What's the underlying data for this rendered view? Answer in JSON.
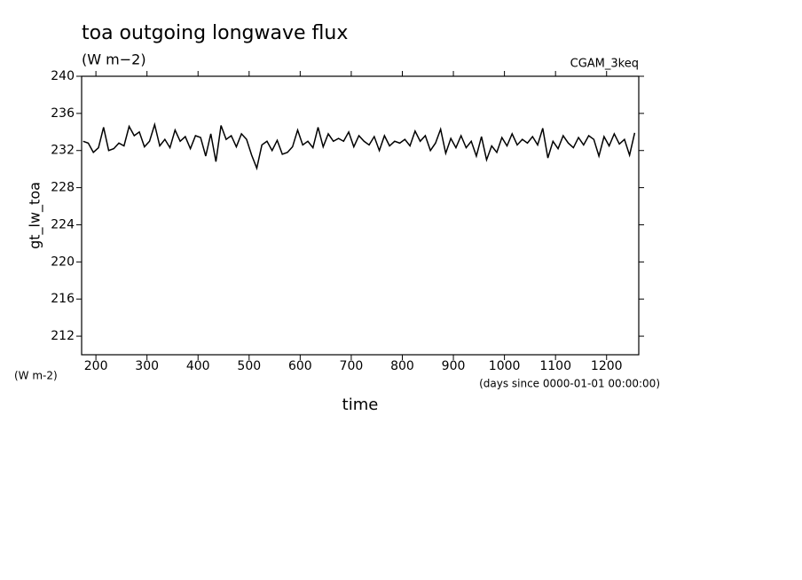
{
  "chart_data": {
    "type": "line",
    "title": "toa outgoing longwave flux",
    "subtitle": "(W m−2)",
    "dataset": "CGAM_3keq",
    "y_label": "gt_lw_toa",
    "y_units": "(W m-2)",
    "x_label": "time",
    "x_units": "(days since 0000-01-01 00:00:00)",
    "xlim": [
      172,
      1263
    ],
    "xticks": [
      200,
      300,
      400,
      500,
      600,
      700,
      800,
      900,
      1000,
      1100,
      1200
    ],
    "ylim": [
      210,
      240
    ],
    "yticks": [
      212,
      216,
      220,
      224,
      228,
      232,
      236,
      240
    ],
    "x": [
      175,
      185,
      195,
      205,
      215,
      225,
      235,
      245,
      255,
      265,
      275,
      285,
      295,
      305,
      315,
      325,
      335,
      345,
      355,
      365,
      375,
      385,
      395,
      405,
      415,
      425,
      435,
      445,
      455,
      465,
      475,
      485,
      495,
      505,
      515,
      525,
      535,
      545,
      555,
      565,
      575,
      585,
      595,
      605,
      615,
      625,
      635,
      645,
      655,
      665,
      675,
      685,
      695,
      705,
      715,
      725,
      735,
      745,
      755,
      765,
      775,
      785,
      795,
      805,
      815,
      825,
      835,
      845,
      855,
      865,
      875,
      885,
      895,
      905,
      915,
      925,
      935,
      945,
      955,
      965,
      975,
      985,
      995,
      1005,
      1015,
      1025,
      1035,
      1045,
      1055,
      1065,
      1075,
      1085,
      1095,
      1105,
      1115,
      1125,
      1135,
      1145,
      1155,
      1165,
      1175,
      1185,
      1195,
      1205,
      1215,
      1225,
      1235,
      1245,
      1255
    ],
    "series": [
      {
        "color": "#000000",
        "values": [
          233.0,
          232.8,
          231.8,
          232.3,
          234.5,
          232.0,
          232.2,
          232.8,
          232.5,
          234.6,
          233.6,
          234.0,
          232.4,
          233.0,
          234.8,
          232.5,
          233.2,
          232.3,
          234.2,
          233.0,
          233.5,
          232.2,
          233.6,
          233.4,
          231.4,
          233.8,
          230.8,
          234.7,
          233.2,
          233.6,
          232.4,
          233.8,
          233.2,
          231.5,
          230.1,
          232.6,
          233.0,
          232.0,
          233.1,
          231.6,
          231.8,
          232.4,
          234.2,
          232.6,
          233.0,
          232.3,
          234.5,
          232.4,
          233.8,
          233.0,
          233.3,
          233.0,
          234.0,
          232.4,
          233.6,
          233.0,
          232.6,
          233.5,
          232.0,
          233.6,
          232.5,
          233.0,
          232.8,
          233.2,
          232.5,
          234.1,
          233.0,
          233.6,
          232.0,
          232.8,
          234.3,
          231.7,
          233.3,
          232.3,
          233.6,
          232.3,
          233.0,
          231.4,
          233.5,
          231.0,
          232.5,
          231.8,
          233.4,
          232.5,
          233.8,
          232.6,
          233.2,
          232.8,
          233.5,
          232.6,
          234.4,
          231.2,
          233.0,
          232.2,
          233.6,
          232.8,
          232.3,
          233.4,
          232.6,
          233.6,
          233.2,
          231.4,
          233.5,
          232.5,
          233.8,
          232.7,
          233.2,
          231.5,
          233.9
        ]
      }
    ]
  }
}
